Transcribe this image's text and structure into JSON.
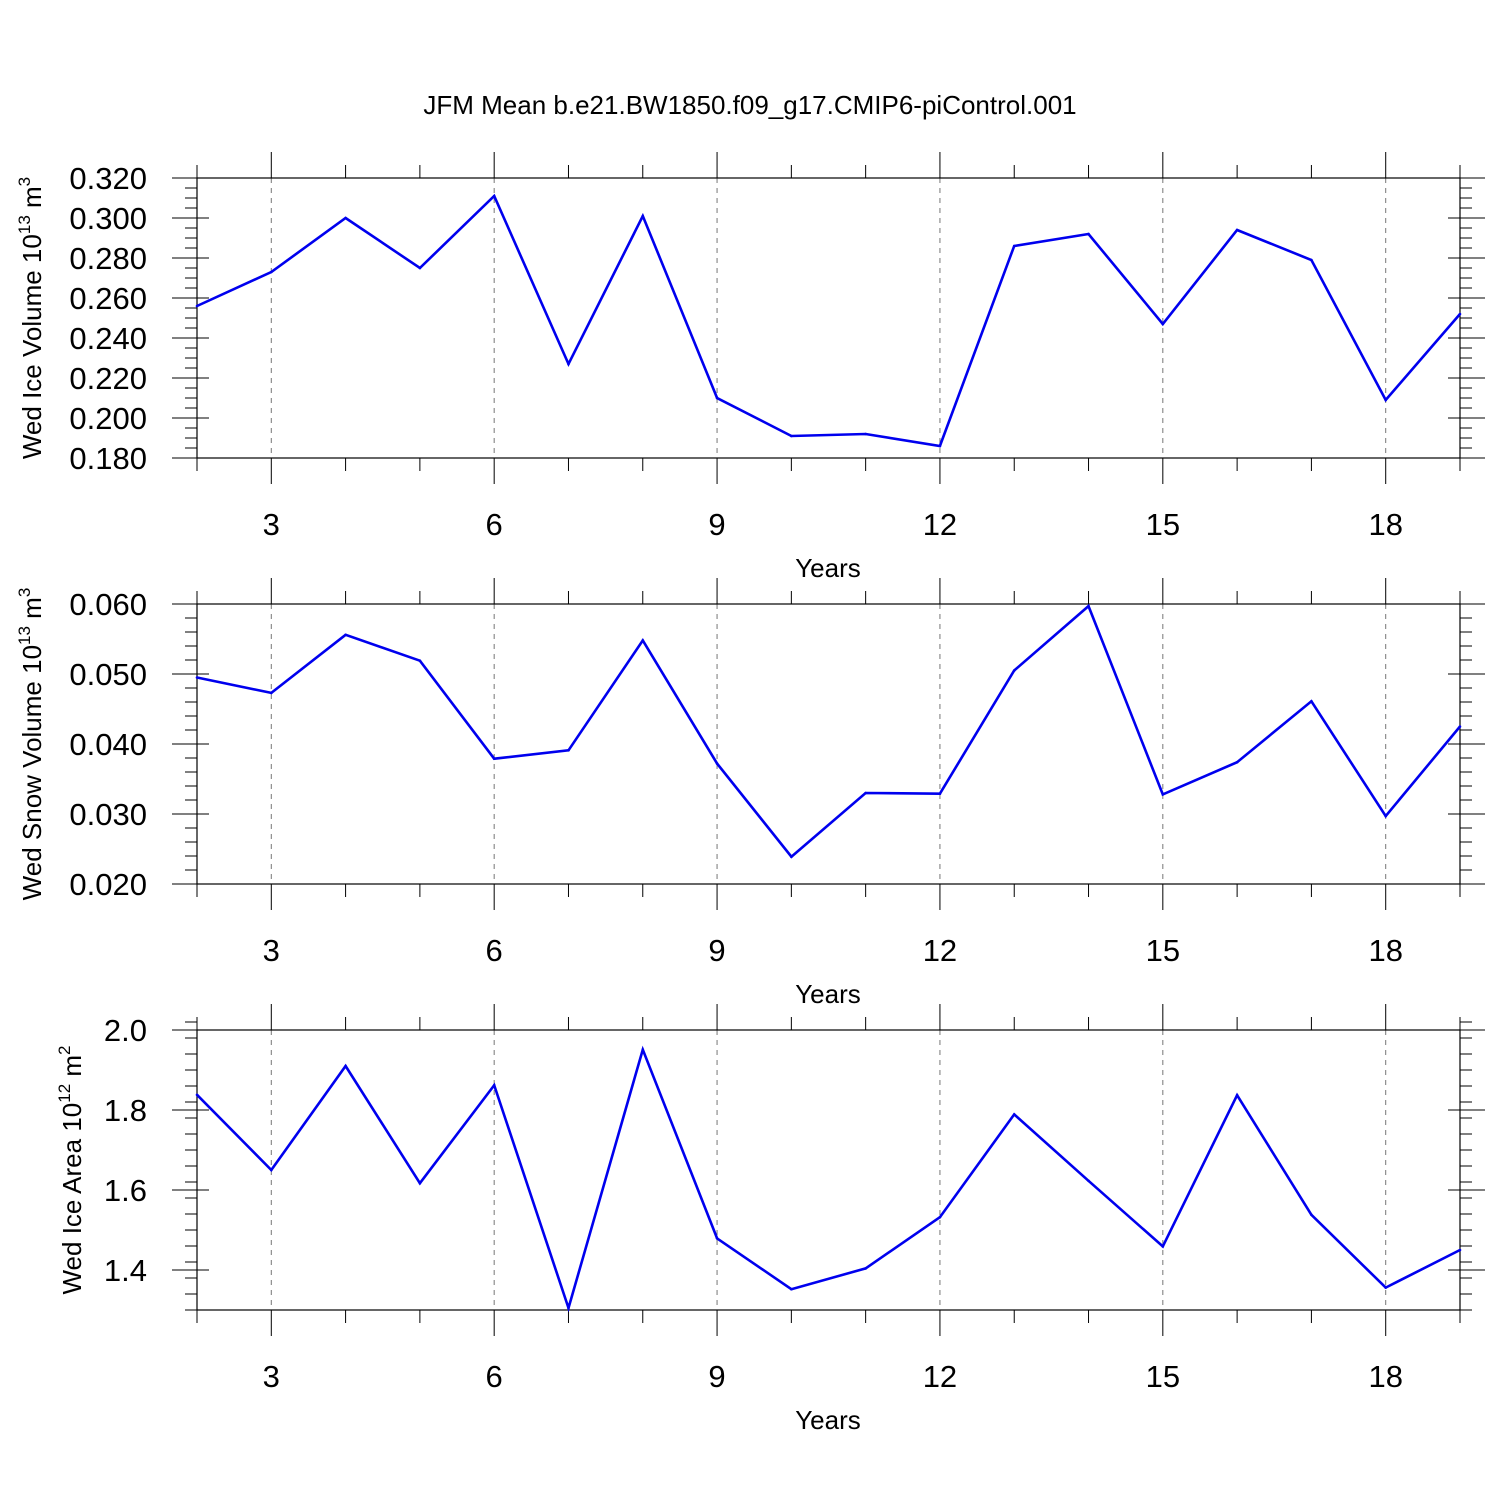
{
  "title": "JFM Mean b.e21.BW1850.f09_g17.CMIP6-piControl.001",
  "line_color": "#0000ee",
  "chart_data": [
    {
      "type": "line",
      "xlabel": "Years",
      "ylabel": {
        "prefix": "Wed Ice Volume 10",
        "exp": "13",
        "unit": " m",
        "unit_exp": "3"
      },
      "xlim": [
        2,
        19
      ],
      "ylim": [
        0.18,
        0.32
      ],
      "xticks": [
        3,
        6,
        9,
        12,
        15,
        18
      ],
      "yticks": [
        0.18,
        0.2,
        0.22,
        0.24,
        0.26,
        0.28,
        0.3,
        0.32
      ],
      "ytick_labels": [
        "0.180",
        "0.200",
        "0.220",
        "0.240",
        "0.260",
        "0.280",
        "0.300",
        "0.320"
      ],
      "y_minor_step": 0.005,
      "x": [
        2,
        3,
        4,
        5,
        6,
        7,
        8,
        9,
        10,
        11,
        12,
        13,
        14,
        15,
        16,
        17,
        18,
        19
      ],
      "values": [
        0.256,
        0.273,
        0.3,
        0.275,
        0.311,
        0.227,
        0.301,
        0.21,
        0.191,
        0.192,
        0.186,
        0.286,
        0.292,
        0.247,
        0.294,
        0.279,
        0.209,
        0.252
      ]
    },
    {
      "type": "line",
      "xlabel": "Years",
      "ylabel": {
        "prefix": "Wed Snow Volume 10",
        "exp": "13",
        "unit": " m",
        "unit_exp": "3"
      },
      "xlim": [
        2,
        19
      ],
      "ylim": [
        0.02,
        0.06
      ],
      "xticks": [
        3,
        6,
        9,
        12,
        15,
        18
      ],
      "yticks": [
        0.02,
        0.03,
        0.04,
        0.05,
        0.06
      ],
      "ytick_labels": [
        "0.020",
        "0.030",
        "0.040",
        "0.050",
        "0.060"
      ],
      "y_minor_step": 0.002,
      "x": [
        2,
        3,
        4,
        5,
        6,
        7,
        8,
        9,
        10,
        11,
        12,
        13,
        14,
        15,
        16,
        17,
        18,
        19
      ],
      "values": [
        0.0495,
        0.0473,
        0.0556,
        0.0519,
        0.0379,
        0.0391,
        0.0548,
        0.0372,
        0.0239,
        0.033,
        0.0329,
        0.0505,
        0.0597,
        0.0328,
        0.0374,
        0.0461,
        0.0297,
        0.0425
      ]
    },
    {
      "type": "line",
      "xlabel": "Years",
      "ylabel": {
        "prefix": "Wed Ice Area 10",
        "exp": "12",
        "unit": " m",
        "unit_exp": "2"
      },
      "xlim": [
        2,
        19
      ],
      "ylim": [
        1.3,
        2.0
      ],
      "xticks": [
        3,
        6,
        9,
        12,
        15,
        18
      ],
      "yticks": [
        1.4,
        1.6,
        1.8,
        2.0
      ],
      "ytick_labels": [
        "1.4",
        "1.6",
        "1.8",
        "2.0"
      ],
      "y_minor_step": 0.04,
      "x": [
        2,
        3,
        4,
        5,
        6,
        7,
        8,
        9,
        10,
        11,
        12,
        13,
        14,
        15,
        16,
        17,
        18,
        19
      ],
      "values": [
        1.838,
        1.65,
        1.91,
        1.617,
        1.862,
        1.305,
        1.951,
        1.479,
        1.352,
        1.404,
        1.532,
        1.789,
        1.623,
        1.459,
        1.837,
        1.538,
        1.356,
        1.45
      ]
    }
  ]
}
